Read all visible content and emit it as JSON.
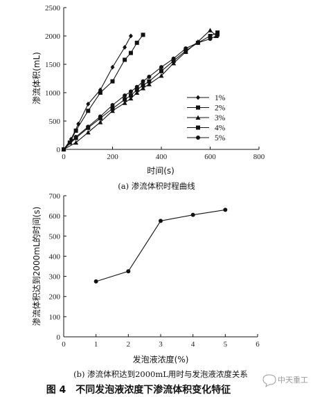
{
  "figure": {
    "title": "图 4　不同发泡液浓度下渗流体积变化特征",
    "watermark": "中天重工"
  },
  "chart_data": [
    {
      "type": "line",
      "caption": "(a) 渗流体积时程曲线",
      "xlabel": "时间(s)",
      "ylabel": "渗流体积(mL)",
      "xlim": [
        0,
        800
      ],
      "ylim": [
        0,
        2500
      ],
      "xticks": [
        0,
        200,
        400,
        600,
        800
      ],
      "yticks": [
        0,
        500,
        1000,
        1500,
        2000,
        2500
      ],
      "legend_position": "right",
      "series": [
        {
          "name": "1%",
          "marker": "diamond",
          "x": [
            0,
            30,
            60,
            100,
            150,
            200,
            250,
            275
          ],
          "y": [
            0,
            180,
            450,
            800,
            1050,
            1450,
            1800,
            2000
          ]
        },
        {
          "name": "2%",
          "marker": "square",
          "x": [
            0,
            25,
            50,
            100,
            150,
            200,
            250,
            275,
            300,
            325
          ],
          "y": [
            0,
            120,
            330,
            680,
            1000,
            1200,
            1580,
            1700,
            1880,
            2020
          ]
        },
        {
          "name": "3%",
          "marker": "triangle",
          "x": [
            0,
            50,
            100,
            150,
            200,
            250,
            275,
            300,
            325,
            350,
            400,
            450,
            500,
            550,
            600,
            625
          ],
          "y": [
            0,
            120,
            300,
            480,
            680,
            820,
            900,
            1000,
            1080,
            1150,
            1300,
            1520,
            1720,
            1900,
            2100,
            2000
          ]
        },
        {
          "name": "4%",
          "marker": "square",
          "x": [
            0,
            50,
            100,
            150,
            200,
            250,
            275,
            300,
            325,
            350,
            400,
            450,
            500,
            550,
            600,
            630
          ],
          "y": [
            0,
            200,
            380,
            550,
            720,
            880,
            950,
            1050,
            1130,
            1200,
            1380,
            1560,
            1740,
            1880,
            2000,
            2060
          ]
        },
        {
          "name": "5%",
          "marker": "circle",
          "x": [
            0,
            50,
            100,
            150,
            200,
            250,
            275,
            300,
            325,
            350,
            400,
            450,
            500,
            550,
            600,
            630
          ],
          "y": [
            0,
            220,
            400,
            580,
            780,
            950,
            1020,
            1100,
            1200,
            1280,
            1450,
            1600,
            1780,
            1880,
            1950,
            2010
          ]
        }
      ]
    },
    {
      "type": "line",
      "caption": "(b) 渗流体积达到2000mL用时与发泡液浓度关系",
      "xlabel": "发泡液浓度(%)",
      "ylabel": "渗流体积达到2000mL的时间(s)",
      "xlim": [
        0,
        6
      ],
      "ylim": [
        0,
        700
      ],
      "xticks": [
        0,
        1,
        2,
        3,
        4,
        5,
        6
      ],
      "yticks": [
        0,
        100,
        200,
        300,
        400,
        500,
        600,
        700
      ],
      "series": [
        {
          "name": "",
          "marker": "circle",
          "x": [
            1,
            2,
            3,
            4,
            5
          ],
          "y": [
            275,
            325,
            575,
            605,
            630
          ]
        }
      ]
    }
  ]
}
